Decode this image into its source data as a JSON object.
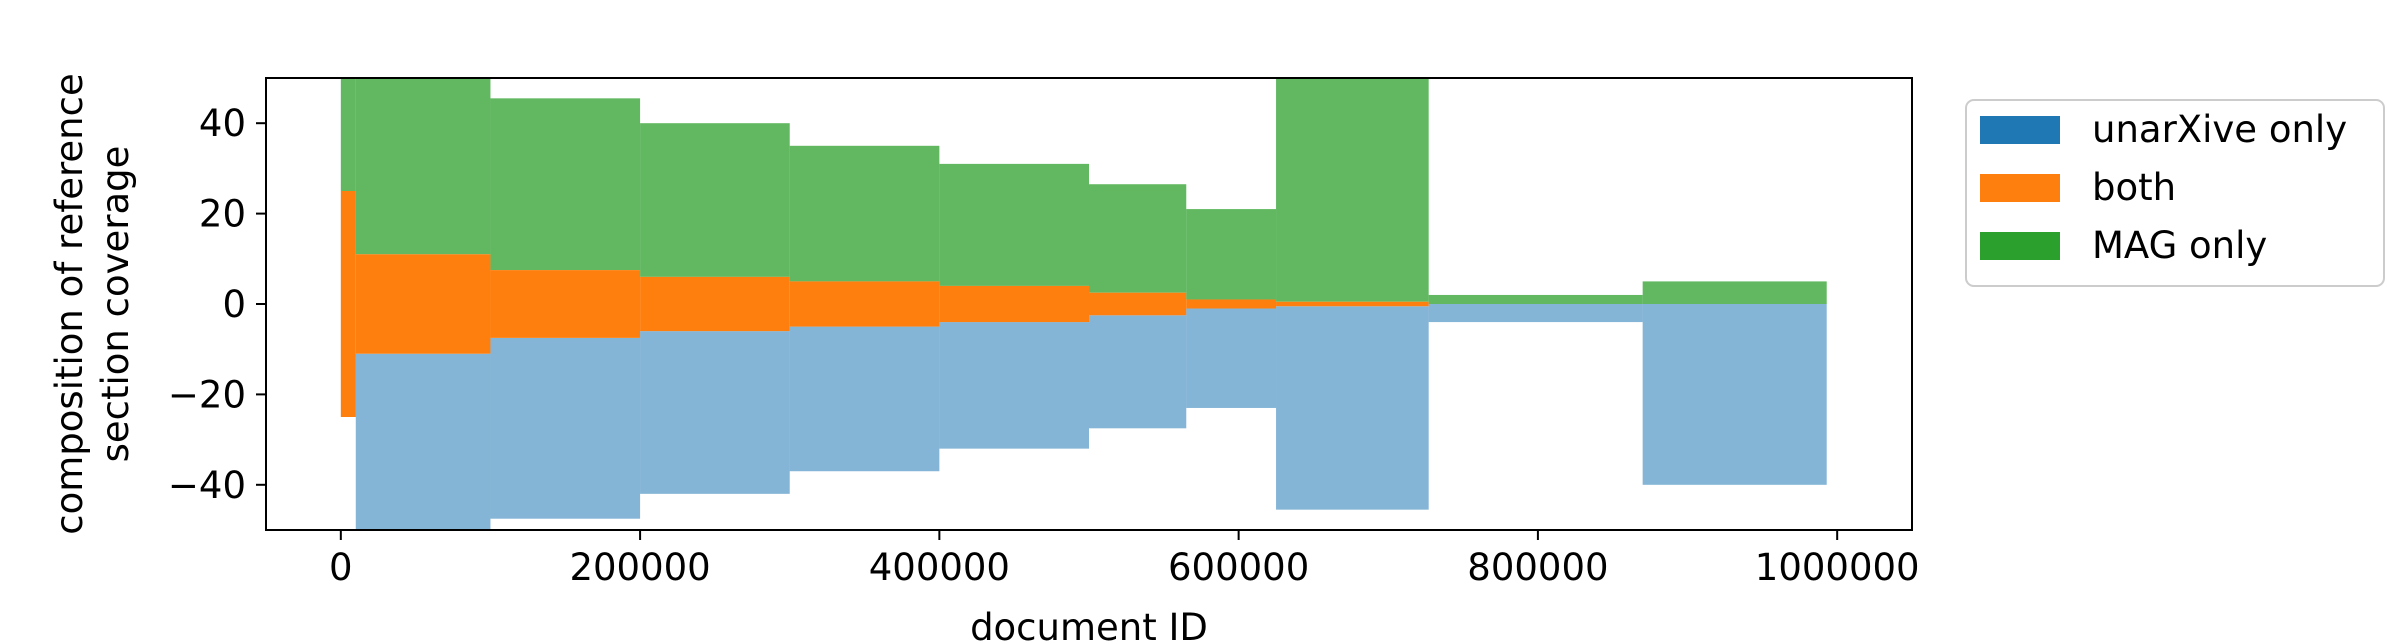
{
  "chart_data": {
    "type": "bar",
    "title": "",
    "xlabel": "document ID",
    "ylabel_lines": [
      "composition of reference",
      "section coverage"
    ],
    "xlim": [
      -50000,
      1050000
    ],
    "ylim": [
      -50,
      50
    ],
    "xticks": [
      {
        "value": 0,
        "label": "0"
      },
      {
        "value": 200000,
        "label": "200000"
      },
      {
        "value": 400000,
        "label": "400000"
      },
      {
        "value": 600000,
        "label": "600000"
      },
      {
        "value": 800000,
        "label": "800000"
      },
      {
        "value": 1000000,
        "label": "1000000"
      }
    ],
    "yticks": [
      {
        "value": -40,
        "label": "−40"
      },
      {
        "value": -20,
        "label": "−20"
      },
      {
        "value": 0,
        "label": "0"
      },
      {
        "value": 20,
        "label": "20"
      },
      {
        "value": 40,
        "label": "40"
      }
    ],
    "grid": false,
    "legend_position": "outside-right-top",
    "series": [
      {
        "name": "unarXive only",
        "color": "#1f77b4"
      },
      {
        "name": "both",
        "color": "#ff7f0e"
      },
      {
        "name": "MAG only",
        "color": "#2ca02c"
      }
    ],
    "segments": [
      {
        "x_start": 0,
        "x_end": 10000,
        "green": 50,
        "orange": 50,
        "blue": 0
      },
      {
        "x_start": 10000,
        "x_end": 100000,
        "green": 45,
        "orange": 22,
        "blue": 45
      },
      {
        "x_start": 100000,
        "x_end": 200000,
        "green": 38,
        "orange": 15,
        "blue": 40
      },
      {
        "x_start": 200000,
        "x_end": 300000,
        "green": 34,
        "orange": 12,
        "blue": 36
      },
      {
        "x_start": 300000,
        "x_end": 400000,
        "green": 30,
        "orange": 10,
        "blue": 32
      },
      {
        "x_start": 400000,
        "x_end": 500000,
        "green": 27,
        "orange": 8,
        "blue": 28
      },
      {
        "x_start": 500000,
        "x_end": 565000,
        "green": 24,
        "orange": 5,
        "blue": 25
      },
      {
        "x_start": 565000,
        "x_end": 625000,
        "green": 20,
        "orange": 2,
        "blue": 22
      },
      {
        "x_start": 625000,
        "x_end": 727000,
        "green": 50,
        "orange": 1,
        "blue": 45
      },
      {
        "x_start": 727000,
        "x_end": 870000,
        "green": 2,
        "orange": 0,
        "blue": 4
      },
      {
        "x_start": 870000,
        "x_end": 993000,
        "green": 5,
        "orange": 0,
        "blue": 40
      }
    ]
  }
}
